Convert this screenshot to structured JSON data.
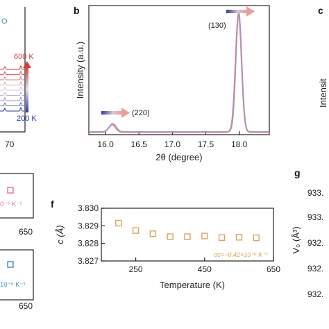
{
  "panel_letters": {
    "b": "b",
    "c": "c",
    "f": "f",
    "g": "g"
  },
  "colors": {
    "pink": "#d9798a",
    "blue_trace": "#8b9ec8",
    "blue": "#2a3aa8",
    "red": "#d83a3a",
    "orange": "#dba35a",
    "light_blue": "#3a8fd0",
    "axis": "#222222"
  },
  "left_strip": {
    "o_fragment": "O",
    "temp_high": "600 K",
    "temp_low": "200 K",
    "x_tick": "70",
    "box1_text": "0⁻⁶ K⁻¹",
    "box1_tick": "650",
    "box2_text": "10⁻⁶ K⁻¹",
    "box2_tick": "650"
  },
  "panel_c": {
    "ylabel": "Intensit"
  },
  "panel_g": {
    "ylabel": "V₀ (Å³)",
    "y_ticks": [
      "933.",
      "933.",
      "932.",
      "932.",
      "932."
    ]
  },
  "chart_data": [
    {
      "type": "line",
      "panel": "b",
      "xlabel": "2θ (degree)",
      "ylabel": "Intensity (a.u.)",
      "xlim": [
        15.75,
        18.45
      ],
      "ylim": [
        0,
        1.03
      ],
      "x_ticks": [
        16.0,
        16.5,
        17.0,
        17.5,
        18.0
      ],
      "x_tick_labels": [
        "16.0",
        "16.5",
        "17.0",
        "17.5",
        "18.0"
      ],
      "y_ticks": [],
      "annotations": [
        {
          "text": "(220)",
          "x": 16.1
        },
        {
          "text": "(130)",
          "x": 18.0
        }
      ],
      "series": [
        {
          "color": "#d9798a",
          "baseline": 0.02,
          "peaks": [
            {
              "x": 16.1,
              "height": 0.06,
              "width": 0.05
            },
            {
              "x": 17.99,
              "height": 0.94,
              "width": 0.045
            }
          ]
        },
        {
          "color": "#8b9ec8",
          "baseline": 0.025,
          "peaks": [
            {
              "x": 16.11,
              "height": 0.065,
              "width": 0.05
            },
            {
              "x": 17.995,
              "height": 0.96,
              "width": 0.042
            }
          ]
        }
      ]
    },
    {
      "type": "scatter",
      "panel": "f",
      "xlabel": "Temperature (K)",
      "ylabel": "c (Å)",
      "xlim": [
        150,
        650
      ],
      "ylim": [
        3.827,
        3.83
      ],
      "x_ticks": [
        250,
        450,
        650
      ],
      "x_tick_labels": [
        "250",
        "450",
        "650"
      ],
      "y_ticks": [
        3.827,
        3.828,
        3.829,
        3.83
      ],
      "y_tick_labels": [
        "3.827",
        "3.828",
        "3.829",
        "3.830"
      ],
      "annotation": "αc=−0.42×10⁻⁶ K⁻¹",
      "series": [
        {
          "marker": "open-square",
          "color": "#dba35a",
          "x": [
            200,
            250,
            300,
            350,
            400,
            450,
            500,
            550,
            600
          ],
          "y": [
            3.82915,
            3.82873,
            3.82855,
            3.82838,
            3.82838,
            3.82842,
            3.82833,
            3.82835,
            3.82832
          ]
        }
      ]
    }
  ]
}
